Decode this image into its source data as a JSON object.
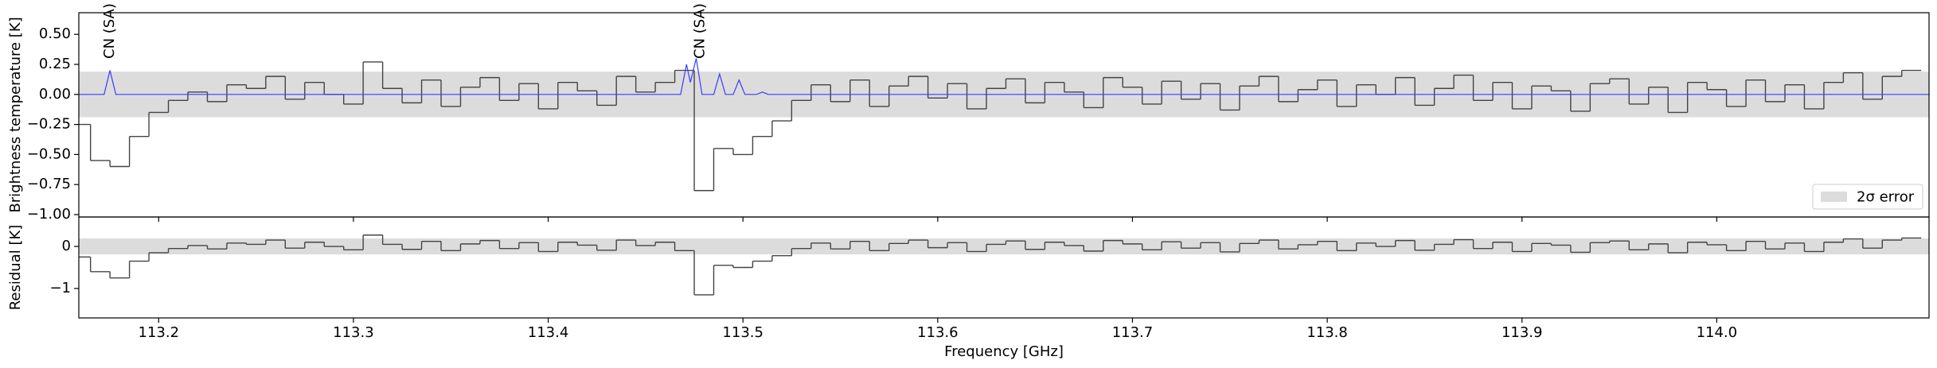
{
  "chart_data": [
    {
      "type": "line",
      "ylabel": "Brightness temperature [K]",
      "xlim": [
        113.159,
        114.109
      ],
      "ylim": [
        -1.02,
        0.68
      ],
      "yticks": [
        {
          "value": -1,
          "label": "−1.00"
        },
        {
          "value": -0.75,
          "label": "−0.75"
        },
        {
          "value": -0.5,
          "label": "−0.50"
        },
        {
          "value": -0.25,
          "label": "−0.25"
        },
        {
          "value": 0,
          "label": "0.00"
        },
        {
          "value": 0.25,
          "label": "0.25"
        },
        {
          "value": 0.5,
          "label": "0.50"
        }
      ],
      "band": {
        "lower": -0.19,
        "upper": 0.19,
        "color": "#dcdcdc",
        "label": "2σ error"
      },
      "legend": "lower right",
      "series": [
        {
          "color": "#444444",
          "drawstyle": "steps-mid",
          "x": [
            113.16,
            113.17,
            113.18,
            113.19,
            113.2,
            113.21,
            113.22,
            113.23,
            113.24,
            113.25,
            113.26,
            113.27,
            113.28,
            113.29,
            113.3,
            113.31,
            113.32,
            113.33,
            113.34,
            113.35,
            113.36,
            113.37,
            113.38,
            113.39,
            113.4,
            113.41,
            113.42,
            113.43,
            113.44,
            113.45,
            113.46,
            113.47,
            113.48,
            113.49,
            113.5,
            113.51,
            113.52,
            113.53,
            113.54,
            113.55,
            113.56,
            113.57,
            113.58,
            113.59,
            113.6,
            113.61,
            113.62,
            113.63,
            113.64,
            113.65,
            113.66,
            113.67,
            113.68,
            113.69,
            113.7,
            113.71,
            113.72,
            113.73,
            113.74,
            113.75,
            113.76,
            113.77,
            113.78,
            113.79,
            113.8,
            113.81,
            113.82,
            113.83,
            113.84,
            113.85,
            113.86,
            113.87,
            113.88,
            113.89,
            113.9,
            113.91,
            113.92,
            113.93,
            113.94,
            113.95,
            113.96,
            113.97,
            113.98,
            113.99,
            114.0,
            114.01,
            114.02,
            114.03,
            114.04,
            114.05,
            114.06,
            114.07,
            114.08,
            114.09,
            114.1
          ],
          "values": [
            -0.25,
            -0.55,
            -0.6,
            -0.35,
            -0.15,
            -0.05,
            0.02,
            -0.06,
            0.08,
            0.05,
            0.15,
            -0.04,
            0.1,
            0.0,
            -0.08,
            0.27,
            0.05,
            -0.07,
            0.12,
            -0.1,
            0.06,
            0.14,
            -0.05,
            0.09,
            -0.12,
            0.1,
            0.03,
            -0.09,
            0.15,
            0.02,
            0.1,
            0.2,
            -0.8,
            -0.45,
            -0.5,
            -0.35,
            -0.22,
            -0.05,
            0.08,
            -0.06,
            0.12,
            -0.1,
            0.07,
            0.15,
            -0.03,
            0.09,
            -0.12,
            0.05,
            0.13,
            -0.07,
            0.1,
            0.02,
            -0.11,
            0.14,
            0.06,
            -0.08,
            0.11,
            -0.04,
            0.09,
            -0.13,
            0.07,
            0.15,
            -0.06,
            0.04,
            0.12,
            -0.1,
            0.08,
            0.0,
            0.14,
            -0.09,
            0.05,
            0.16,
            -0.05,
            0.1,
            -0.12,
            0.07,
            0.03,
            -0.14,
            0.09,
            0.13,
            -0.08,
            0.06,
            -0.15,
            0.1,
            0.04,
            -0.1,
            0.12,
            -0.06,
            0.08,
            -0.12,
            0.1,
            0.18,
            -0.04,
            0.15,
            0.2
          ]
        },
        {
          "color": "#3b3bff",
          "drawstyle": "default",
          "x": [
            113.159,
            113.172,
            113.175,
            113.178,
            113.468,
            113.471,
            113.473,
            113.476,
            113.479,
            113.485,
            113.488,
            113.491,
            113.495,
            113.498,
            113.501,
            113.507,
            113.51,
            113.513,
            114.109
          ],
          "values": [
            0,
            0,
            0.2,
            0,
            0,
            0.25,
            0.1,
            0.3,
            0,
            0,
            0.17,
            0,
            0,
            0.12,
            0,
            0,
            0.02,
            0,
            0
          ]
        }
      ],
      "annotations": [
        {
          "text": "CN (SA)",
          "x": 113.175
        },
        {
          "text": "CN (SA)",
          "x": 113.478
        }
      ]
    },
    {
      "type": "line",
      "ylabel": "Residual [K]",
      "xlabel": "Frequency [GHz]",
      "xlim": [
        113.159,
        114.109
      ],
      "ylim": [
        -1.7,
        0.7
      ],
      "yticks": [
        {
          "value": -1,
          "label": "−1"
        },
        0
      ],
      "xticks": [
        113.2,
        113.3,
        113.4,
        113.5,
        113.6,
        113.7,
        113.8,
        113.9,
        {
          "value": 114,
          "label": "114.0"
        }
      ],
      "band": {
        "lower": -0.19,
        "upper": 0.19,
        "color": "#dcdcdc"
      },
      "series": [
        {
          "color": "#444444",
          "drawstyle": "steps-mid",
          "x": [
            113.16,
            113.17,
            113.18,
            113.19,
            113.2,
            113.21,
            113.22,
            113.23,
            113.24,
            113.25,
            113.26,
            113.27,
            113.28,
            113.29,
            113.3,
            113.31,
            113.32,
            113.33,
            113.34,
            113.35,
            113.36,
            113.37,
            113.38,
            113.39,
            113.4,
            113.41,
            113.42,
            113.43,
            113.44,
            113.45,
            113.46,
            113.47,
            113.48,
            113.49,
            113.5,
            113.51,
            113.52,
            113.53,
            113.54,
            113.55,
            113.56,
            113.57,
            113.58,
            113.59,
            113.6,
            113.61,
            113.62,
            113.63,
            113.64,
            113.65,
            113.66,
            113.67,
            113.68,
            113.69,
            113.7,
            113.71,
            113.72,
            113.73,
            113.74,
            113.75,
            113.76,
            113.77,
            113.78,
            113.79,
            113.8,
            113.81,
            113.82,
            113.83,
            113.84,
            113.85,
            113.86,
            113.87,
            113.88,
            113.89,
            113.9,
            113.91,
            113.92,
            113.93,
            113.94,
            113.95,
            113.96,
            113.97,
            113.98,
            113.99,
            114.0,
            114.01,
            114.02,
            114.03,
            114.04,
            114.05,
            114.06,
            114.07,
            114.08,
            114.09,
            114.1
          ],
          "values": [
            -0.25,
            -0.6,
            -0.75,
            -0.35,
            -0.15,
            -0.05,
            0.02,
            -0.06,
            0.08,
            0.05,
            0.15,
            -0.04,
            0.1,
            0.0,
            -0.08,
            0.27,
            0.05,
            -0.07,
            0.12,
            -0.1,
            0.06,
            0.14,
            -0.05,
            0.09,
            -0.12,
            0.1,
            0.03,
            -0.09,
            0.15,
            0.02,
            0.1,
            -0.1,
            -1.15,
            -0.45,
            -0.5,
            -0.35,
            -0.22,
            -0.05,
            0.08,
            -0.06,
            0.12,
            -0.1,
            0.07,
            0.15,
            -0.03,
            0.09,
            -0.12,
            0.05,
            0.13,
            -0.07,
            0.1,
            0.02,
            -0.11,
            0.14,
            0.06,
            -0.08,
            0.11,
            -0.04,
            0.09,
            -0.13,
            0.07,
            0.15,
            -0.06,
            0.04,
            0.12,
            -0.1,
            0.08,
            0.0,
            0.14,
            -0.09,
            0.05,
            0.16,
            -0.05,
            0.1,
            -0.12,
            0.07,
            0.03,
            -0.14,
            0.09,
            0.13,
            -0.08,
            0.06,
            -0.15,
            0.1,
            0.04,
            -0.1,
            0.12,
            -0.06,
            0.08,
            -0.12,
            0.1,
            0.18,
            -0.04,
            0.15,
            0.2
          ]
        }
      ]
    }
  ]
}
